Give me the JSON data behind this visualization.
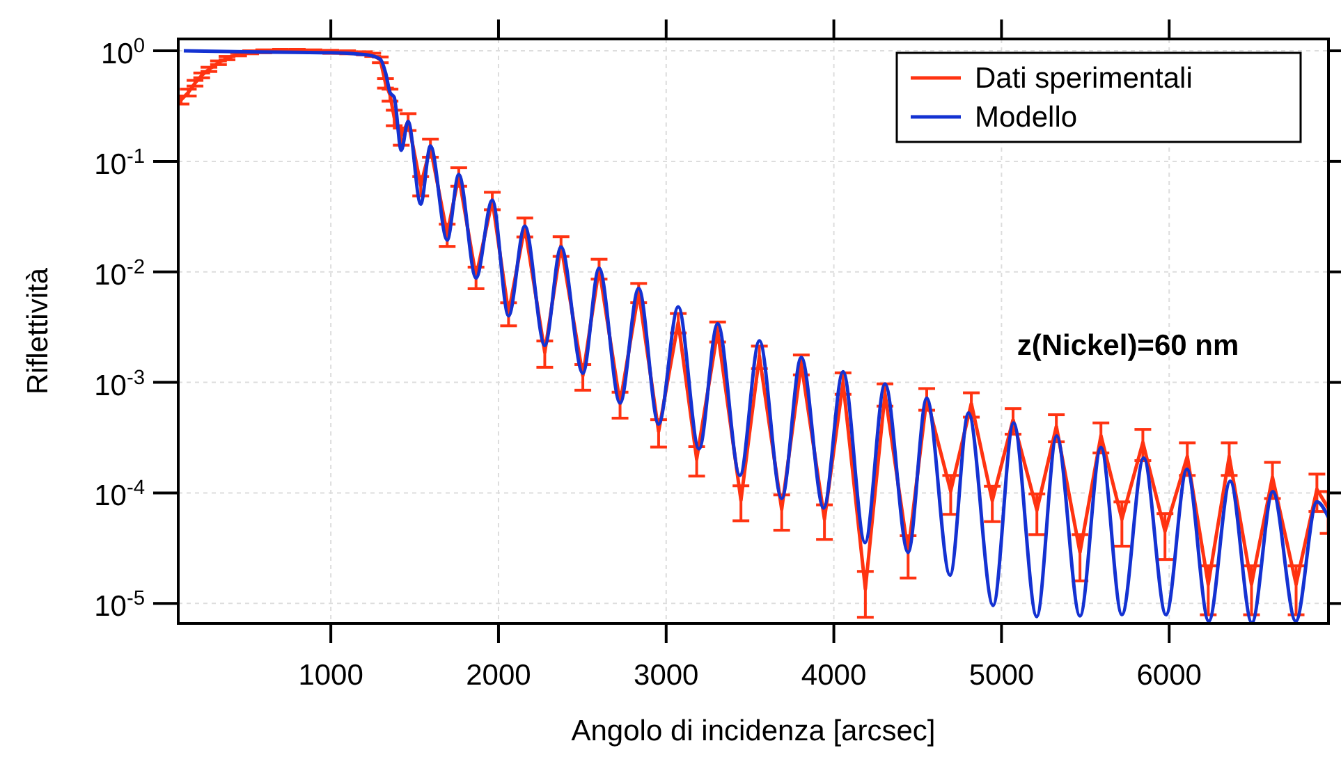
{
  "chart_data": {
    "type": "line",
    "xlabel": "Angolo di incidenza [arcsec]",
    "ylabel": "Riflettività",
    "log": "y",
    "grid": true,
    "legend": "top right",
    "marker": "none",
    "line_style": "solid",
    "xlim": [
      90,
      6950
    ],
    "xticks": [
      1000,
      2000,
      3000,
      4000,
      5000,
      6000
    ],
    "ylim": [
      6.6e-06,
      1.28
    ],
    "yticks": [
      {
        "value": 1,
        "label": "10$^{0}$"
      },
      {
        "value": 0.1,
        "label": "10$^{-1}$"
      },
      {
        "value": 0.01,
        "label": "10$^{-2}$"
      },
      {
        "value": 0.001,
        "label": "10$^{-3}$"
      },
      {
        "value": 0.0001,
        "label": "10$^{-4}$"
      },
      {
        "value": 1e-05,
        "label": "10$^{-5}$"
      }
    ],
    "annotations": [
      "z(Nickel)=60 nm"
    ],
    "series": [
      {
        "name": "Dati sperimentali",
        "color": "#ff3311",
        "x": [
          107,
          150,
          190,
          230,
          273,
          330,
          381,
          450,
          522,
          600,
          700,
          800,
          900,
          1000,
          1100,
          1200,
          1250,
          1295,
          1326,
          1353,
          1378,
          1420,
          1461,
          1536,
          1594,
          1694,
          1763,
          1866,
          1963,
          2060,
          2157,
          2276,
          2373,
          2503,
          2600,
          2725,
          2836,
          2955,
          3072,
          3182,
          3307,
          3446,
          3556,
          3689,
          3806,
          3944,
          4055,
          4188,
          4305,
          4443,
          4554,
          4697,
          4820,
          4945,
          5069,
          5211,
          5327,
          5468,
          5593,
          5718,
          5843,
          5975,
          6108,
          6233,
          6358,
          6491,
          6616,
          6757,
          6881,
          6948
        ],
        "values": [
          0.36,
          0.42,
          0.51,
          0.6,
          0.68,
          0.78,
          0.86,
          0.93,
          0.97,
          0.99,
          1.0,
          1.0,
          0.99,
          0.98,
          0.97,
          0.95,
          0.92,
          0.83,
          0.51,
          0.4,
          0.25,
          0.17,
          0.23,
          0.0607,
          0.134,
          0.022,
          0.0735,
          0.00904,
          0.0445,
          0.00425,
          0.0257,
          0.00187,
          0.0173,
          0.00115,
          0.0108,
          0.000645,
          0.00656,
          0.00036,
          0.0035,
          0.000202,
          0.00292,
          8.6e-05,
          0.00173,
          7.1e-05,
          0.00147,
          5.8e-05,
          0.001,
          1.35e-05,
          0.00079,
          2.9e-05,
          0.00072,
          0.000104,
          0.000645,
          8.5e-05,
          0.00046,
          7e-05,
          0.0004,
          2.9e-05,
          0.00033,
          5.8e-05,
          0.000286,
          4.5e-05,
          0.000214,
          1.49e-05,
          0.000214,
          1.49e-05,
          0.000139,
          1.49e-05,
          0.000108,
          7.3e-05
        ],
        "errors": [
          0.03,
          0.03,
          0.03,
          0.03,
          0.03,
          0.03,
          0.03,
          0.03,
          0.03,
          0.03,
          0.03,
          0.03,
          0.03,
          0.03,
          0.03,
          0.03,
          0.03,
          0.05,
          0.05,
          0.05,
          0.04,
          0.03,
          0.04,
          0.012,
          0.025,
          0.005,
          0.014,
          0.002,
          0.008,
          0.001,
          0.005,
          0.0005,
          0.0035,
          0.0003,
          0.0022,
          0.00017,
          0.0013,
          0.0001,
          0.0007,
          6e-05,
          0.0006,
          3e-05,
          0.0004,
          2.5e-05,
          0.0003,
          2e-05,
          0.00022,
          6e-06,
          0.00018,
          1.2e-05,
          0.00016,
          4e-05,
          0.00016,
          3e-05,
          0.00012,
          2.8e-05,
          0.00011,
          1.3e-05,
          0.0001,
          2.5e-05,
          9e-05,
          2e-05,
          7e-05,
          7e-06,
          7e-05,
          7e-06,
          5e-05,
          7e-06,
          4e-05,
          3e-05
        ]
      },
      {
        "name": "Modello",
        "color": "#1432d2",
        "x": [
          123,
          500,
          1000,
          1212,
          1295,
          1328,
          1353,
          1378,
          1420,
          1461,
          1536,
          1594,
          1694,
          1763,
          1866,
          1963,
          2060,
          2157,
          2276,
          2373,
          2503,
          2600,
          2725,
          2836,
          2955,
          3072,
          3196,
          3307,
          3440,
          3556,
          3689,
          3806,
          3939,
          4055,
          4186,
          4305,
          4443,
          4554,
          4693,
          4803,
          4950,
          5072,
          5210,
          5329,
          5468,
          5593,
          5718,
          5848,
          5981,
          6106,
          6236,
          6364,
          6493,
          6618,
          6755,
          6881,
          6950
        ],
        "values": [
          1.0,
          0.98,
          0.96,
          0.92,
          0.84,
          0.62,
          0.42,
          0.38,
          0.126,
          0.23,
          0.041,
          0.138,
          0.0194,
          0.076,
          0.0088,
          0.0445,
          0.004,
          0.0259,
          0.00216,
          0.0168,
          0.00121,
          0.0108,
          0.00065,
          0.0071,
          0.00042,
          0.00482,
          0.00025,
          0.0034,
          0.000144,
          0.00238,
          8.9e-05,
          0.00169,
          7.3e-05,
          0.00125,
          3.55e-05,
          0.00097,
          2.9e-05,
          0.00072,
          1.8e-05,
          0.00053,
          9.6e-06,
          0.00043,
          7.6e-06,
          0.000328,
          7.7e-06,
          0.000258,
          7.9e-06,
          0.000207,
          7.9e-06,
          0.000164,
          6.9e-06,
          0.000128,
          6.7e-06,
          0.000103,
          6.9e-06,
          8.3e-05,
          6e-05
        ]
      }
    ]
  }
}
